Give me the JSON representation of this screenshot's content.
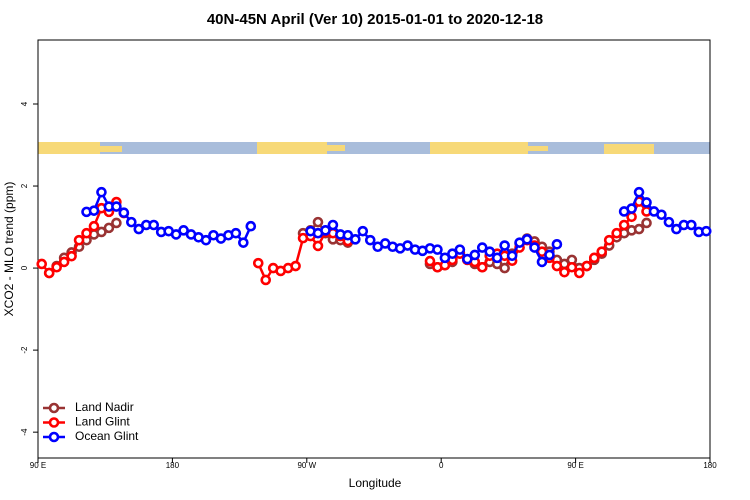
{
  "chart_data": {
    "type": "line",
    "title": "40N-45N April (Ver 10)   2015-01-01 to 2020-12-18",
    "x_label": "Longitude",
    "y_label": "XCO2 - MLO trend (ppm)",
    "xlim": [
      90,
      540
    ],
    "ylim": [
      -4.63,
      5.56
    ],
    "xticks": [
      {
        "value": 90,
        "label": "90 E"
      },
      180,
      {
        "value": 270,
        "label": "90 W"
      },
      {
        "value": 360,
        "label": "0"
      },
      {
        "value": 450,
        "label": "90 E"
      },
      {
        "value": 540,
        "label": "180"
      }
    ],
    "yticks": [
      -4,
      -2,
      0,
      2,
      4
    ],
    "legend": "bottom-left",
    "series": [
      {
        "name": "Land Nadir",
        "color": "#993333",
        "x": [
          97.5,
          102.5,
          107.5,
          112.5,
          117.5,
          122.5,
          127.5,
          132.5,
          137.5,
          142.5,
          null,
          267.5,
          272.5,
          277.5,
          282.5,
          287.5,
          292.5,
          297.5,
          null,
          352.5,
          357.5,
          362.5,
          367.5,
          372.5,
          377.5,
          382.5,
          387.5,
          392.5,
          397.5,
          402.5,
          407.5,
          412.5,
          417.5,
          422.5,
          427.5,
          432.5,
          437.5,
          442.5,
          447.5,
          452.5,
          457.5,
          462.5,
          467.5,
          472.5,
          477.5,
          482.5,
          487.5,
          492.5,
          497.5
        ],
        "values": [
          -0.12,
          0.05,
          0.25,
          0.38,
          0.52,
          0.68,
          0.82,
          0.88,
          0.98,
          1.1,
          null,
          0.85,
          0.92,
          1.12,
          0.85,
          0.7,
          0.68,
          0.62,
          null,
          0.1,
          0.02,
          0.07,
          0.15,
          0.38,
          0.2,
          0.1,
          0.02,
          0.15,
          0.1,
          0.0,
          0.35,
          0.6,
          0.72,
          0.65,
          0.52,
          0.4,
          0.2,
          0.1,
          0.2,
          0.0,
          0.05,
          0.2,
          0.35,
          0.55,
          0.75,
          0.85,
          0.92,
          0.95,
          1.1
        ]
      },
      {
        "name": "Land Glint",
        "color": "#ff0000",
        "x": [
          92.5,
          97.5,
          102.5,
          107.5,
          112.5,
          117.5,
          122.5,
          127.5,
          132.5,
          137.5,
          142.5,
          147.5,
          null,
          237.5,
          242.5,
          247.5,
          252.5,
          257.5,
          262.5,
          267.5,
          272.5,
          277.5,
          282.5,
          287.5,
          292.5,
          297.5,
          null,
          352.5,
          357.5,
          362.5,
          367.5,
          372.5,
          377.5,
          382.5,
          387.5,
          392.5,
          397.5,
          402.5,
          407.5,
          412.5,
          417.5,
          422.5,
          427.5,
          432.5,
          437.5,
          442.5,
          447.5,
          452.5,
          457.5,
          462.5,
          467.5,
          472.5,
          477.5,
          482.5,
          487.5,
          492.5,
          497.5
        ],
        "values": [
          0.1,
          -0.12,
          0.02,
          0.15,
          0.29,
          0.68,
          0.85,
          1.02,
          1.46,
          1.37,
          1.61,
          1.34,
          null,
          0.12,
          -0.29,
          0,
          -0.07,
          0,
          0.05,
          0.73,
          0.78,
          0.54,
          0.88,
          0.85,
          0.78,
          0.66,
          null,
          0.17,
          0.02,
          0.07,
          0.2,
          0.35,
          0.2,
          0.15,
          0.02,
          0.3,
          0.35,
          0.3,
          0.18,
          0.5,
          0.68,
          0.55,
          0.4,
          0.25,
          0.05,
          -0.1,
          0.02,
          -0.12,
          0.05,
          0.25,
          0.4,
          0.68,
          0.85,
          1.05,
          1.25,
          1.62,
          1.38
        ]
      },
      {
        "name": "Ocean Glint",
        "color": "#0000ff",
        "x": [
          122.5,
          127.5,
          132.5,
          137.5,
          142.5,
          147.5,
          152.5,
          157.5,
          162.5,
          167.5,
          172.5,
          177.5,
          182.5,
          187.5,
          192.5,
          197.5,
          202.5,
          207.5,
          212.5,
          217.5,
          222.5,
          227.5,
          232.5,
          null,
          272.5,
          277.5,
          282.5,
          287.5,
          292.5,
          297.5,
          302.5,
          307.5,
          312.5,
          317.5,
          322.5,
          327.5,
          332.5,
          337.5,
          342.5,
          347.5,
          352.5,
          357.5,
          362.5,
          367.5,
          372.5,
          377.5,
          382.5,
          387.5,
          392.5,
          397.5,
          402.5,
          407.5,
          412.5,
          417.5,
          422.5,
          427.5,
          432.5,
          437.5,
          null,
          482.5,
          487.5,
          492.5,
          497.5,
          502.5,
          507.5,
          512.5,
          517.5,
          522.5,
          527.5,
          532.5,
          537.5
        ],
        "values": [
          1.37,
          1.4,
          1.85,
          1.5,
          1.5,
          1.35,
          1.12,
          0.95,
          1.05,
          1.05,
          0.88,
          0.9,
          0.82,
          0.92,
          0.82,
          0.75,
          0.68,
          0.8,
          0.72,
          0.8,
          0.85,
          0.62,
          1.02,
          null,
          0.9,
          0.85,
          0.92,
          1.05,
          0.82,
          0.8,
          0.7,
          0.9,
          0.68,
          0.52,
          0.6,
          0.52,
          0.48,
          0.55,
          0.45,
          0.42,
          0.48,
          0.45,
          0.25,
          0.35,
          0.45,
          0.22,
          0.32,
          0.5,
          0.4,
          0.25,
          0.55,
          0.3,
          0.62,
          0.7,
          0.5,
          0.15,
          0.32,
          0.58,
          null,
          1.38,
          1.45,
          1.85,
          1.6,
          1.38,
          1.3,
          1.12,
          0.95,
          1.05,
          1.05,
          0.88,
          0.9
        ]
      }
    ]
  }
}
